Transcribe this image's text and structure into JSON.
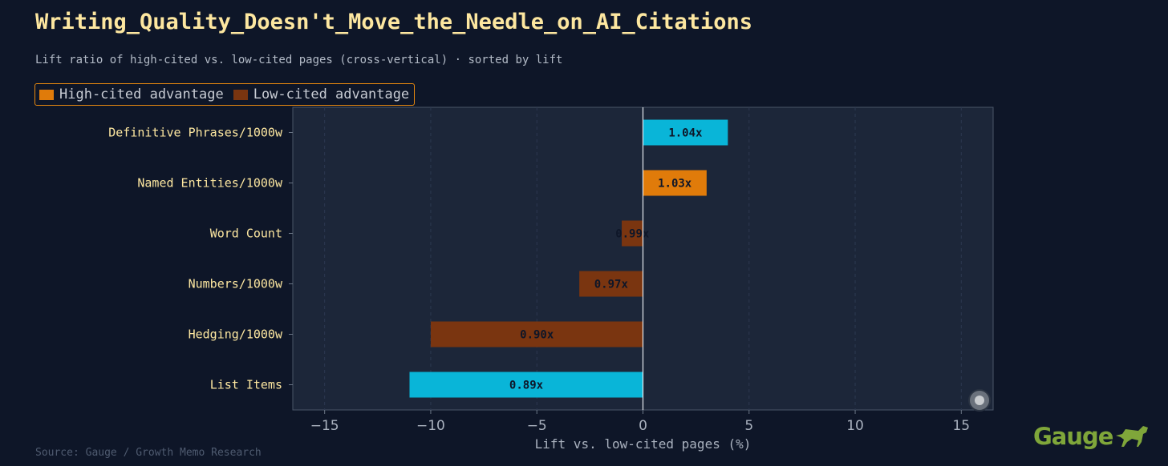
{
  "title": "Writing_Quality_Doesn't_Move_the_Needle_on_AI_Citations",
  "subtitle": "Lift ratio of high-cited vs. low-cited pages (cross-vertical) · sorted by lift",
  "legend": [
    {
      "label": "High-cited advantage",
      "color": "#e07b0a"
    },
    {
      "label": "Low-cited advantage",
      "color": "#7a3510"
    }
  ],
  "footer": "Source: Gauge / Growth Memo Research",
  "brand": "Gauge",
  "colors": {
    "cyan": "#09b5d8",
    "orange": "#e07b0a",
    "brown": "#7a3510",
    "plot_bg": "#1c2639",
    "page_bg": "#0e1628"
  },
  "chart_data": {
    "type": "bar",
    "orientation": "horizontal",
    "title": "Writing_Quality_Doesn't_Move_the_Needle_on_AI_Citations",
    "subtitle": "Lift ratio of high-cited vs. low-cited pages (cross-vertical) · sorted by lift",
    "xlabel": "Lift vs. low-cited pages (%)",
    "ylabel": "",
    "xlim": [
      -16.5,
      16.5
    ],
    "xticks": [
      -15,
      -10,
      -5,
      0,
      5,
      10,
      15
    ],
    "xtick_labels": [
      "−15",
      "−10",
      "−5",
      "0",
      "5",
      "10",
      "15"
    ],
    "grid": true,
    "legend_position": "top-left",
    "categories": [
      "Definitive Phrases/1000w",
      "Named Entities/1000w",
      "Word Count",
      "Numbers/1000w",
      "Hedging/1000w",
      "List Items"
    ],
    "values": [
      4,
      3,
      -1,
      -3,
      -10,
      -11
    ],
    "bar_labels": [
      "1.04x",
      "1.03x",
      "0.99x",
      "0.97x",
      "0.90x",
      "0.89x"
    ],
    "bar_colors": [
      "#09b5d8",
      "#e07b0a",
      "#7a3510",
      "#7a3510",
      "#7a3510",
      "#09b5d8"
    ]
  }
}
